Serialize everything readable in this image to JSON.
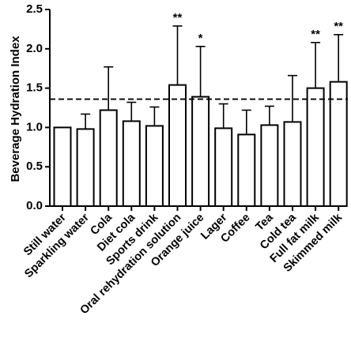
{
  "chart_data": {
    "type": "bar",
    "title": "",
    "xlabel": "",
    "ylabel": "Beverage Hydration Index",
    "ylim": [
      0,
      2.5
    ],
    "yticks": [
      "0.0",
      "0.5",
      "1.0",
      "1.5",
      "2.0",
      "2.5"
    ],
    "reference_line": {
      "value": 1.36,
      "style": "dashed"
    },
    "grid": false,
    "legend": "none",
    "bar_fill": "#ffffff",
    "bar_stroke": "#000000",
    "categories": [
      "Still water",
      "Sparkling water",
      "Cola",
      "Diet cola",
      "Sports drink",
      "Oral rehydration solution",
      "Orange juice",
      "Lager",
      "Coffee",
      "Tea",
      "Cold tea",
      "Full fat milk",
      "Skimmed milk"
    ],
    "values": [
      1.0,
      0.98,
      1.22,
      1.08,
      1.02,
      1.54,
      1.39,
      0.99,
      0.91,
      1.03,
      1.07,
      1.5,
      1.58
    ],
    "error_upper": [
      0.0,
      0.19,
      0.55,
      0.24,
      0.24,
      0.75,
      0.64,
      0.31,
      0.31,
      0.24,
      0.59,
      0.58,
      0.6
    ],
    "significance": [
      "",
      "",
      "",
      "",
      "",
      "**",
      "*",
      "",
      "",
      "",
      "",
      "**",
      "**"
    ]
  }
}
